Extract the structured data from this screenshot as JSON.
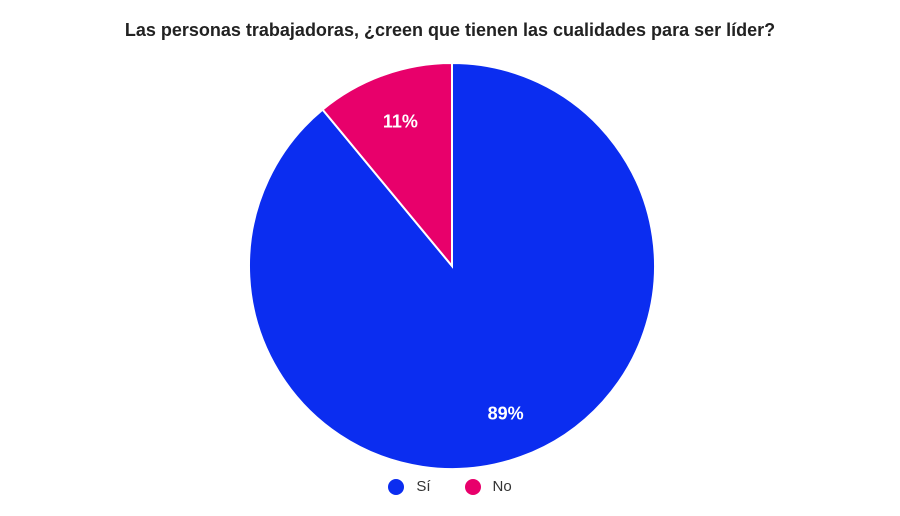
{
  "chart_data": {
    "type": "pie",
    "title": "Las personas trabajadoras, ¿creen que tienen las cualidades para ser líder?",
    "categories": [
      "Sí",
      "No"
    ],
    "values": [
      89,
      11
    ],
    "labels": [
      "89%",
      "11%"
    ],
    "colors": [
      "#0b2df0",
      "#e8006b"
    ],
    "legend_position": "bottom"
  }
}
